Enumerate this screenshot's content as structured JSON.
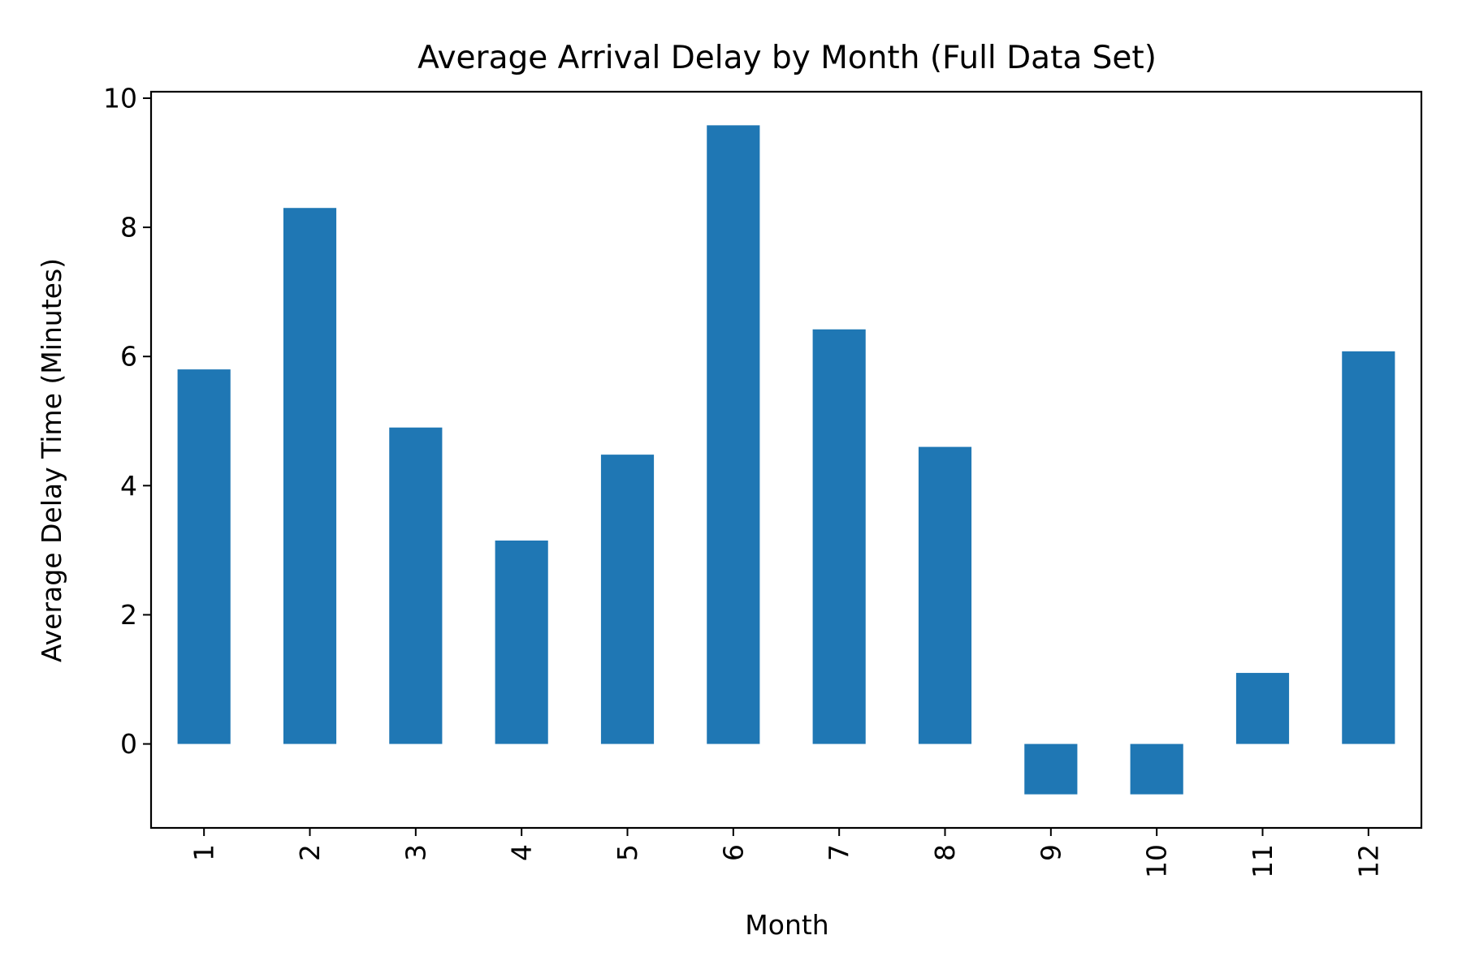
{
  "chart_data": {
    "type": "bar",
    "title": "Average Arrival Delay by Month (Full Data Set)",
    "xlabel": "Month",
    "ylabel": "Average Delay Time (Minutes)",
    "categories": [
      "1",
      "2",
      "3",
      "4",
      "5",
      "6",
      "7",
      "8",
      "9",
      "10",
      "11",
      "12"
    ],
    "values": [
      5.8,
      8.3,
      4.9,
      3.15,
      4.48,
      9.58,
      6.42,
      4.6,
      -0.78,
      -0.78,
      1.1,
      6.08
    ],
    "ylim": [
      -1.3,
      10.1
    ],
    "yticks": [
      0,
      2,
      4,
      6,
      8,
      10
    ],
    "bar_color": "#1f77b4",
    "grid": false,
    "legend": "none"
  }
}
